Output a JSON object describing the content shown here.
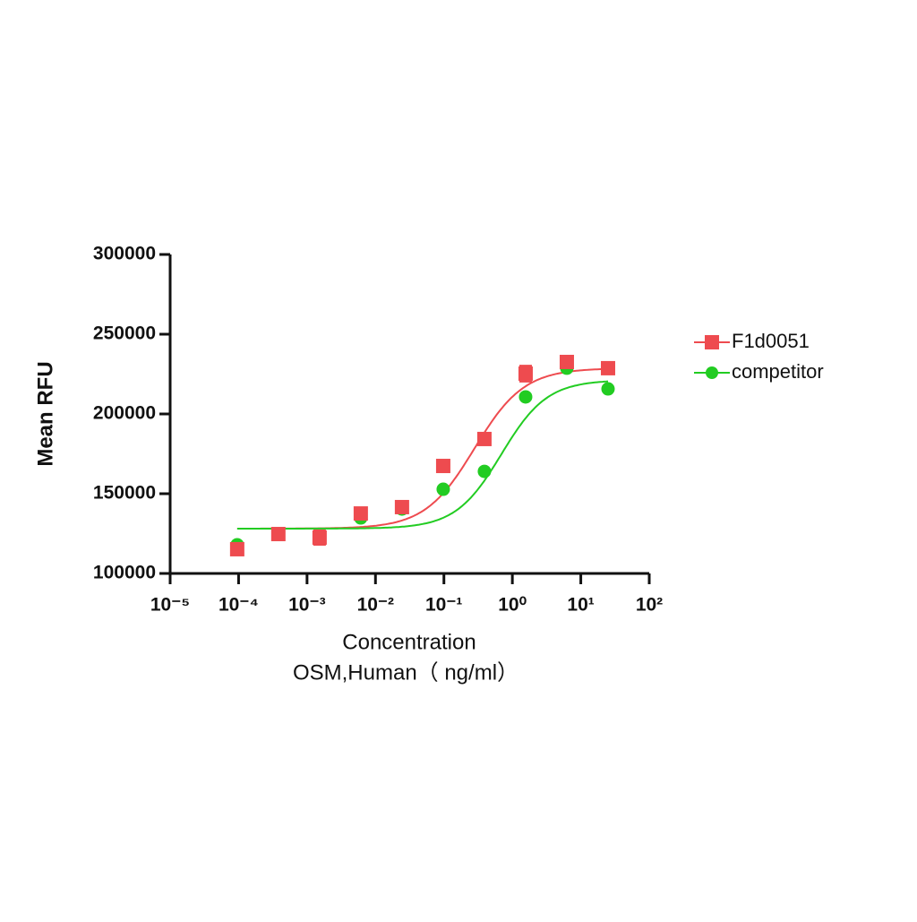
{
  "chart_data": {
    "type": "scatter",
    "ylabel": "Mean RFU",
    "xlabel": [
      "Concentration",
      "OSM,Human（ ng/ml）"
    ],
    "xscale": "log",
    "xlim": [
      1e-05,
      100
    ],
    "xticks": [
      {
        "value": 1e-05,
        "label": "10⁻⁵"
      },
      {
        "value": 0.0001,
        "label": "10⁻⁴"
      },
      {
        "value": 0.001,
        "label": "10⁻³"
      },
      {
        "value": 0.01,
        "label": "10⁻²"
      },
      {
        "value": 0.1,
        "label": "10⁻¹"
      },
      {
        "value": 1,
        "label": "10⁰"
      },
      {
        "value": 10,
        "label": "10¹"
      },
      {
        "value": 100,
        "label": "10²"
      }
    ],
    "ylim": [
      100000,
      300000
    ],
    "yticks": [
      100000,
      150000,
      200000,
      250000,
      300000
    ],
    "legend": "right",
    "x": [
      9.54e-05,
      0.000381,
      0.001526,
      0.0061,
      0.0244,
      0.0977,
      0.3906,
      1.5625,
      6.25,
      25
    ],
    "series": [
      {
        "name": "F1d0051",
        "color": "#ee4b4f",
        "marker": "square",
        "values": [
          115200,
          124700,
          122500,
          137600,
          141600,
          167400,
          184300,
          225300,
          232600,
          228700
        ],
        "errors": [
          0,
          0,
          4500,
          2000,
          0,
          0,
          0,
          5000,
          2000,
          0
        ],
        "fit": {
          "bottom": 128100,
          "top": 228700,
          "ec50": 0.28,
          "hill": 1.2
        }
      },
      {
        "name": "competitor",
        "color": "#22cc22",
        "marker": "circle",
        "values": [
          118000,
          null,
          null,
          134800,
          140400,
          152800,
          164000,
          210700,
          228700,
          215700
        ],
        "fit": {
          "bottom": 128100,
          "top": 221300,
          "ec50": 0.69,
          "hill": 1.3
        }
      }
    ]
  }
}
